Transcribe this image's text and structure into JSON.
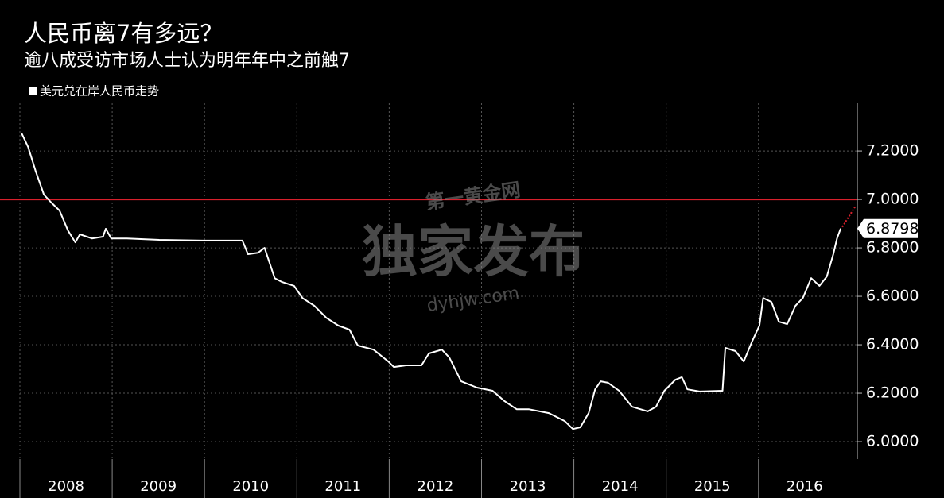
{
  "chart_data": {
    "type": "line",
    "title": "人民币离7有多远？",
    "subtitle": "逾八成受访市场人士认为明年年中之前触7",
    "watermark": {
      "text": "独家发布",
      "brand": "第一黄金网",
      "url": "dyhjw.com"
    },
    "xlim": [
      2008,
      2017.07
    ],
    "xticks": [
      2008,
      2009,
      2010,
      2011,
      2012,
      2013,
      2014,
      2015,
      2016
    ],
    "ylim": [
      5.928,
      7.397
    ],
    "yticks": [
      {
        "value": 6.0,
        "label": "6.0000"
      },
      {
        "value": 6.2,
        "label": "6.2000"
      },
      {
        "value": 6.4,
        "label": "6.4000"
      },
      {
        "value": 6.6,
        "label": "6.6000"
      },
      {
        "value": 6.8,
        "label": "6.8000"
      },
      {
        "value": 7.0,
        "label": "7.0000"
      },
      {
        "value": 7.2,
        "label": "7.2000"
      }
    ],
    "grid": true,
    "reference_line": {
      "value": 7,
      "color": "#d8202c"
    },
    "series": [
      {
        "name": "美元兑在岸人民币走势",
        "color": "#ffffff",
        "x": [
          2008.02,
          2008.09,
          2008.17,
          2008.26,
          2008.34,
          2008.43,
          2008.52,
          2008.6,
          2008.65,
          2008.78,
          2008.9,
          2008.93,
          2008.99,
          2009.16,
          2009.51,
          2010.0,
          2010.41,
          2010.47,
          2010.58,
          2010.65,
          2010.76,
          2010.84,
          2010.97,
          2011.06,
          2011.19,
          2011.32,
          2011.45,
          2011.57,
          2011.66,
          2011.83,
          2011.99,
          2012.05,
          2012.18,
          2012.35,
          2012.43,
          2012.57,
          2012.65,
          2012.78,
          2012.95,
          2013.12,
          2013.25,
          2013.38,
          2013.51,
          2013.73,
          2013.9,
          2013.99,
          2014.07,
          2014.16,
          2014.23,
          2014.29,
          2014.37,
          2014.49,
          2014.63,
          2014.8,
          2014.89,
          2014.98,
          2015.1,
          2015.17,
          2015.23,
          2015.36,
          2015.61,
          2015.64,
          2015.75,
          2015.84,
          2015.93,
          2016.01,
          2016.05,
          2016.14,
          2016.22,
          2016.31,
          2016.4,
          2016.48,
          2016.57,
          2016.66,
          2016.74,
          2016.81,
          2016.85,
          2016.89
        ],
        "values": [
          7.272,
          7.216,
          7.118,
          7.02,
          6.987,
          6.954,
          6.872,
          6.823,
          6.856,
          6.839,
          6.846,
          6.879,
          6.839,
          6.839,
          6.833,
          6.83,
          6.83,
          6.774,
          6.78,
          6.8,
          6.675,
          6.659,
          6.643,
          6.593,
          6.561,
          6.511,
          6.479,
          6.462,
          6.397,
          6.38,
          6.331,
          6.308,
          6.315,
          6.315,
          6.364,
          6.38,
          6.348,
          6.249,
          6.223,
          6.21,
          6.167,
          6.134,
          6.134,
          6.118,
          6.085,
          6.052,
          6.059,
          6.118,
          6.216,
          6.249,
          6.243,
          6.21,
          6.144,
          6.125,
          6.144,
          6.21,
          6.256,
          6.266,
          6.216,
          6.207,
          6.21,
          6.387,
          6.374,
          6.331,
          6.413,
          6.479,
          6.593,
          6.577,
          6.495,
          6.485,
          6.561,
          6.593,
          6.675,
          6.643,
          6.682,
          6.774,
          6.839,
          6.8798
        ]
      }
    ]
  }
}
